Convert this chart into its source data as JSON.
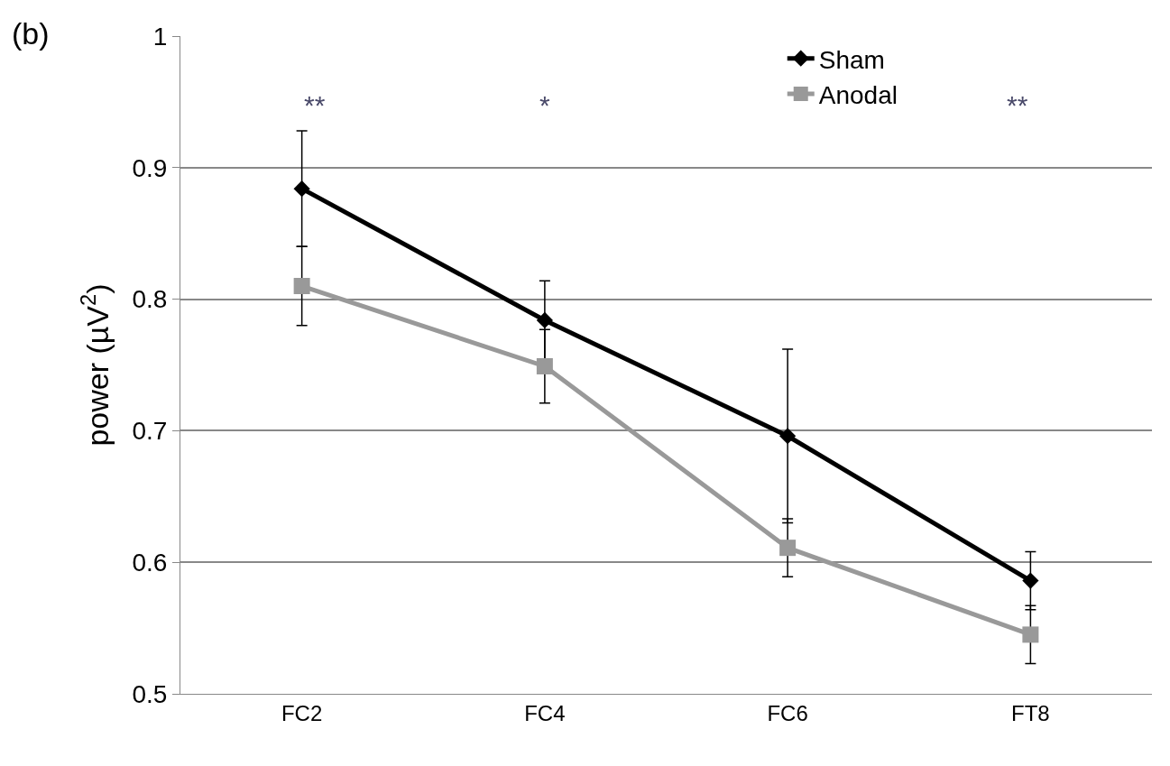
{
  "chart_data": {
    "type": "line",
    "title": "(b)",
    "ylabel": "power (µV$^{2}$)",
    "categories": [
      "FC2",
      "FC4",
      "FC6",
      "FT8"
    ],
    "series": [
      {
        "name": "Sham",
        "color": "#000000",
        "marker": "diamond",
        "values": [
          0.884,
          0.784,
          0.696,
          0.586
        ],
        "errors": [
          0.044,
          0.03,
          0.066,
          0.022
        ]
      },
      {
        "name": "Anodal",
        "color": "#999999",
        "marker": "square",
        "values": [
          0.81,
          0.749,
          0.611,
          0.545
        ],
        "errors": [
          0.03,
          0.028,
          0.022,
          0.022
        ]
      }
    ],
    "ylim": [
      0.5,
      1
    ],
    "yticks": [
      0.5,
      0.6,
      0.7,
      0.8,
      0.9,
      1
    ],
    "grid": "y",
    "legend": "top right",
    "line_style": "solid",
    "annotations": [
      "**",
      "*",
      "**"
    ]
  }
}
